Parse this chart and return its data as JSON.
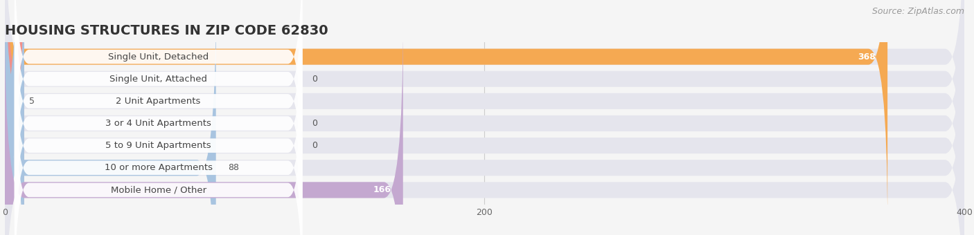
{
  "title": "HOUSING STRUCTURES IN ZIP CODE 62830",
  "source": "Source: ZipAtlas.com",
  "categories": [
    "Single Unit, Detached",
    "Single Unit, Attached",
    "2 Unit Apartments",
    "3 or 4 Unit Apartments",
    "5 to 9 Unit Apartments",
    "10 or more Apartments",
    "Mobile Home / Other"
  ],
  "values": [
    368,
    0,
    5,
    0,
    0,
    88,
    166
  ],
  "bar_colors": [
    "#f5a952",
    "#f0908a",
    "#a8c4e0",
    "#a8c4e0",
    "#a8c4e0",
    "#a8c4e0",
    "#c4a8d0"
  ],
  "background_color": "#f5f5f5",
  "bar_bg_color": "#e5e5ed",
  "label_bg_color": "#ffffff",
  "xlim": [
    0,
    420
  ],
  "data_xlim": [
    0,
    400
  ],
  "xticks": [
    0,
    200,
    400
  ],
  "title_fontsize": 14,
  "label_fontsize": 9.5,
  "value_fontsize": 9,
  "source_fontsize": 9
}
